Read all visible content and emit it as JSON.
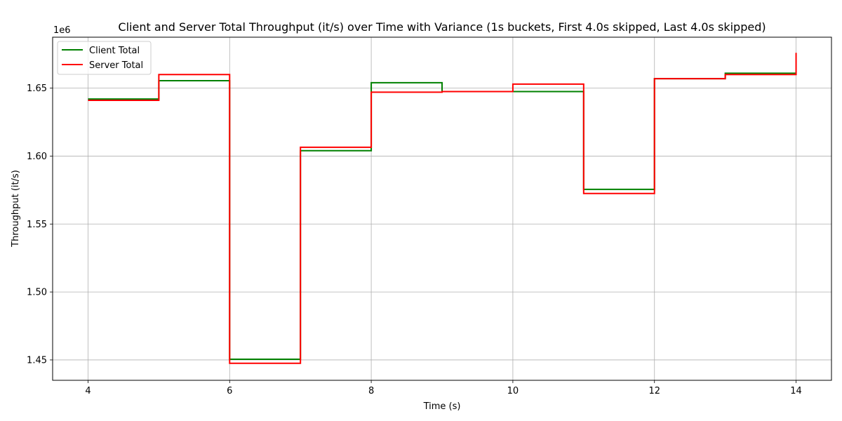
{
  "chart_data": {
    "type": "line",
    "step": "post",
    "title": "Client and Server Total Throughput (it/s) over Time with Variance (1s buckets, First 4.0s skipped, Last 4.0s skipped)",
    "xlabel": "Time (s)",
    "ylabel": "Throughput (it/s)",
    "y_offset_label": "1e6",
    "y_scale": 1000000,
    "xlim": [
      3.5,
      14.5
    ],
    "ylim": [
      1.435,
      1.6875
    ],
    "x_ticks": [
      4,
      6,
      8,
      10,
      12,
      14
    ],
    "x_tick_labels": [
      "4",
      "6",
      "8",
      "10",
      "12",
      "14"
    ],
    "y_ticks": [
      1.45,
      1.5,
      1.55,
      1.6,
      1.65
    ],
    "y_tick_labels": [
      "1.45",
      "1.50",
      "1.55",
      "1.60",
      "1.65"
    ],
    "grid": true,
    "legend_position": "top-left",
    "series": [
      {
        "name": "Client Total",
        "color": "#008000",
        "x": [
          4,
          5,
          6,
          7,
          8,
          9,
          10,
          11,
          12,
          13,
          14
        ],
        "values": [
          1.642,
          1.6555,
          1.4505,
          1.604,
          1.654,
          1.6475,
          1.6475,
          1.5755,
          1.657,
          1.661,
          1.661
        ]
      },
      {
        "name": "Server Total",
        "color": "#ff0000",
        "x": [
          4,
          5,
          6,
          7,
          8,
          9,
          10,
          11,
          12,
          13,
          14
        ],
        "values": [
          1.641,
          1.66,
          1.4475,
          1.6065,
          1.647,
          1.6475,
          1.653,
          1.5725,
          1.657,
          1.66,
          1.676
        ]
      }
    ]
  }
}
